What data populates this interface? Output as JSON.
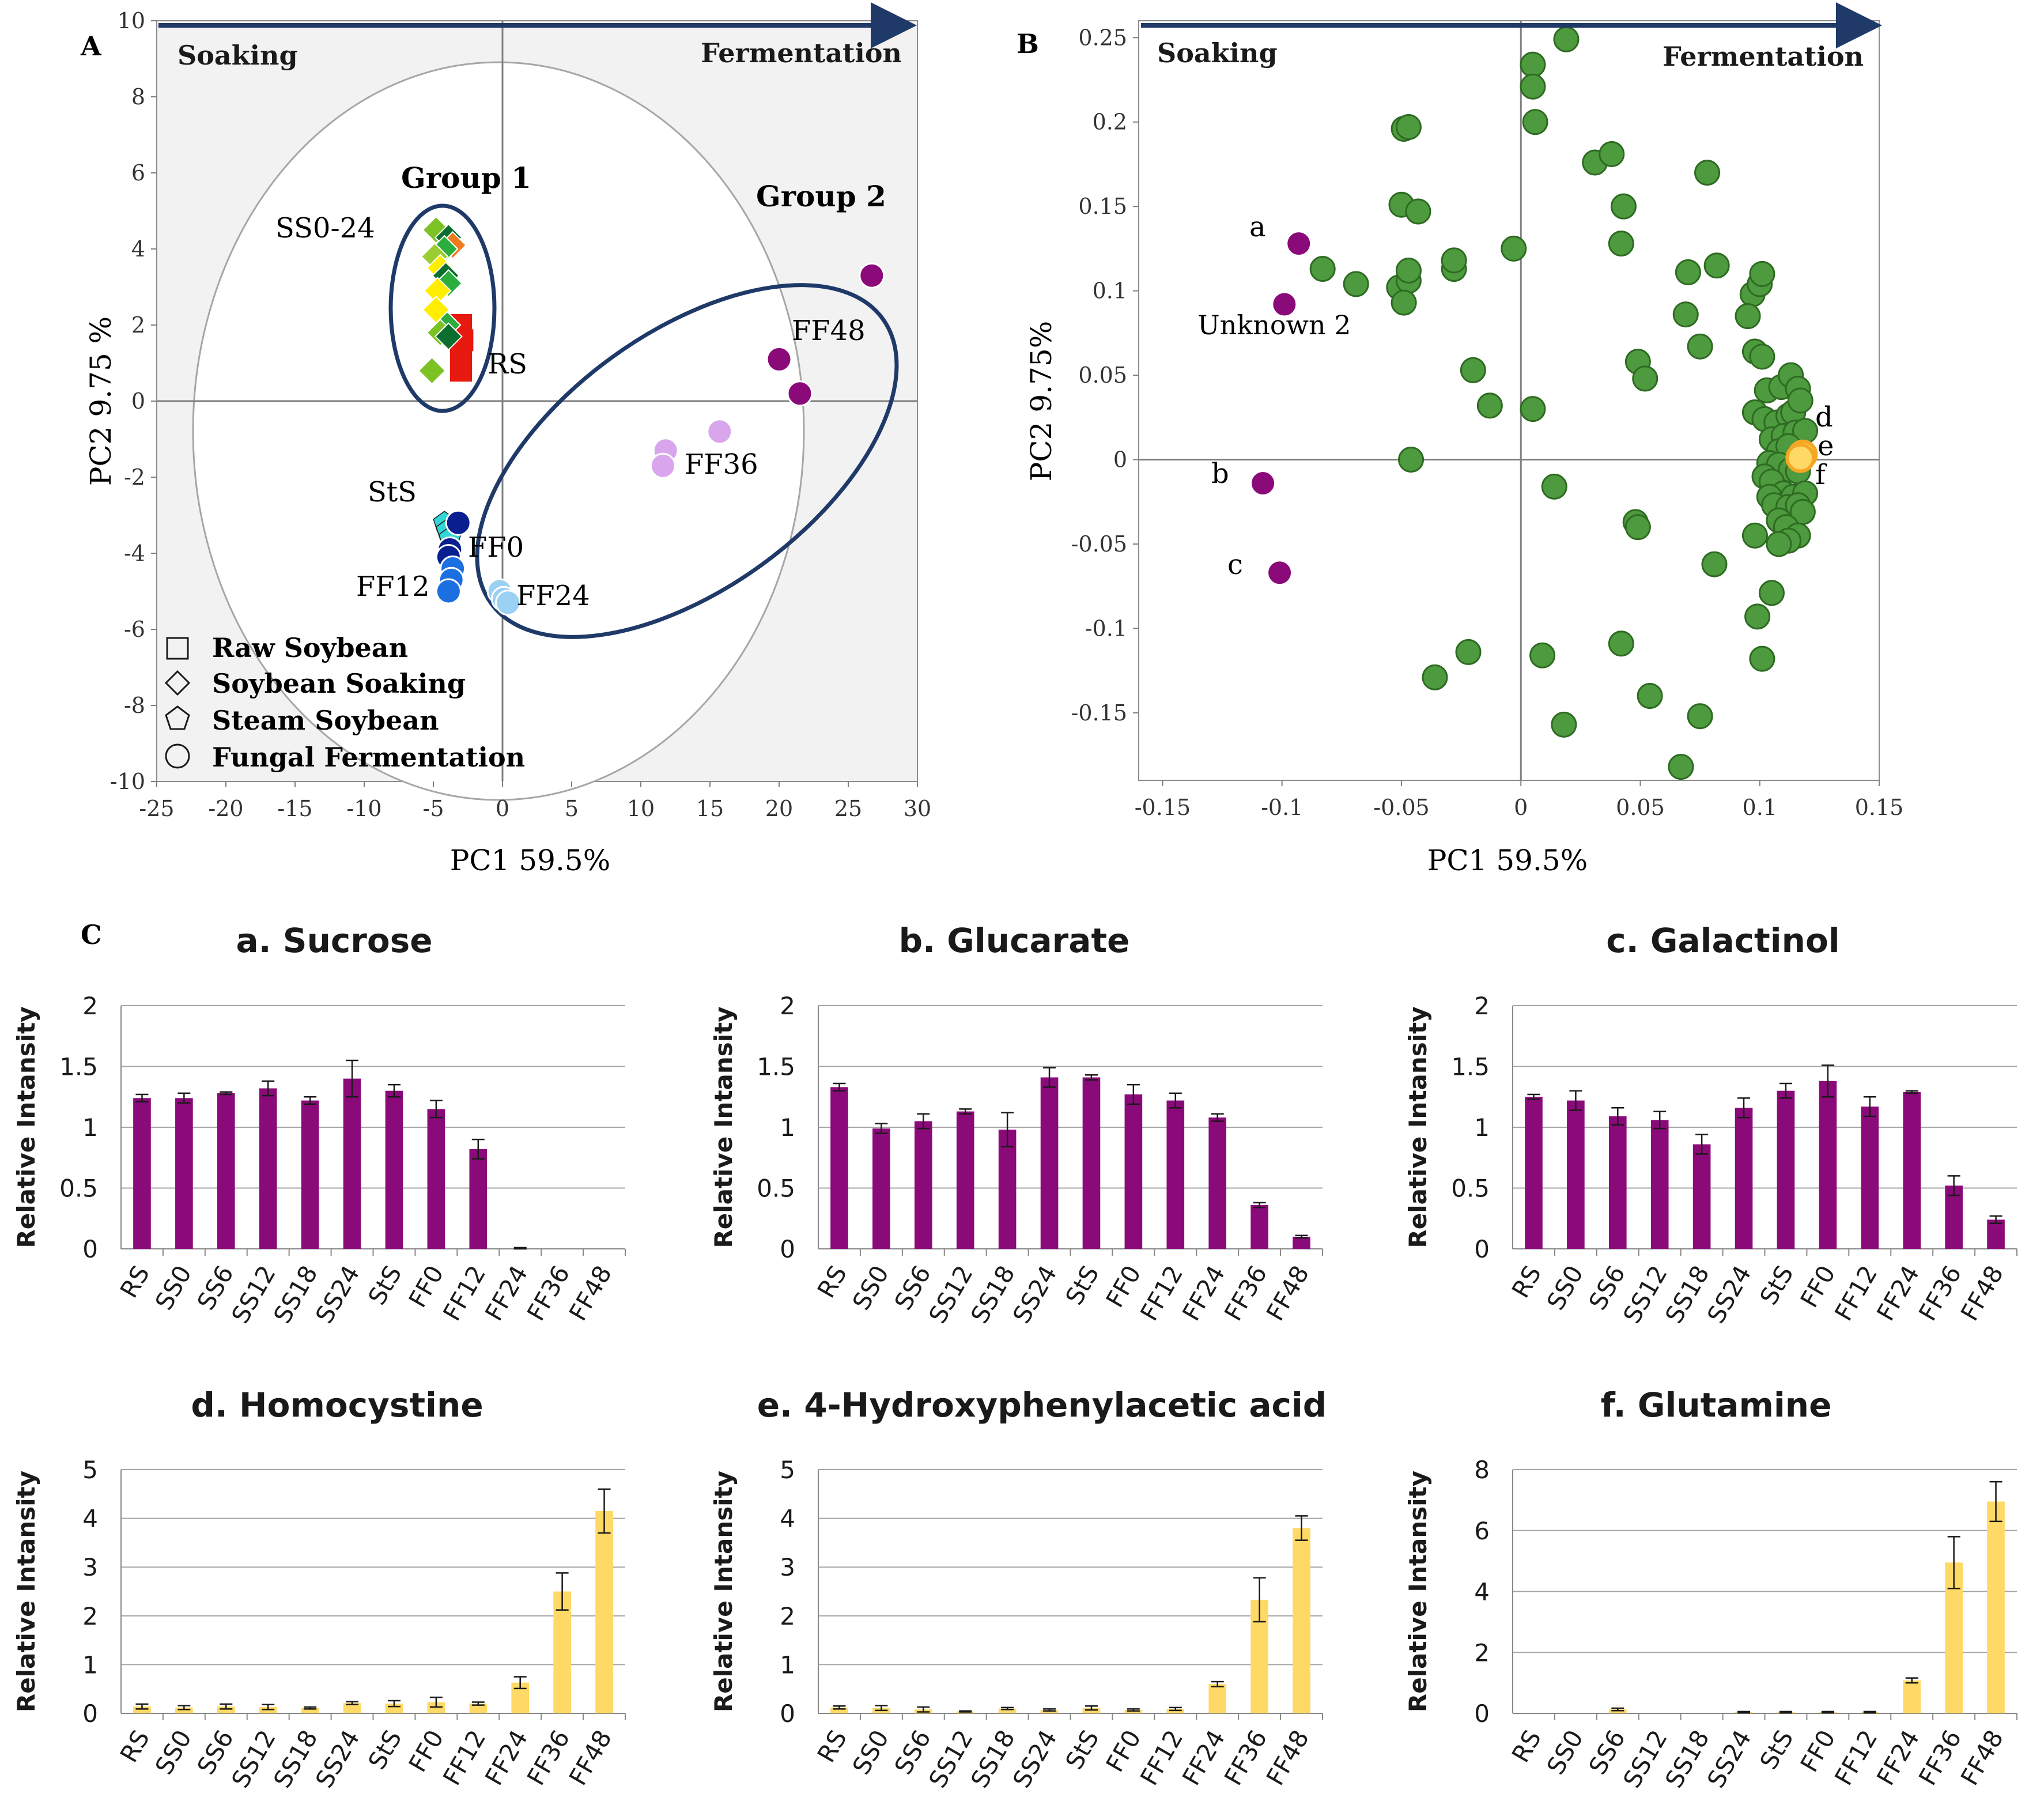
{
  "colors": {
    "purple": "#8B0A7A",
    "yellow": "#FFD966",
    "green": "#4E9A3E",
    "orange": "#F5A623",
    "navy": "#1F3A68",
    "grid": "#A6A6A6",
    "panelBg": "#F2F2F2"
  },
  "chart_data": [
    {
      "id": "A",
      "type": "scatter",
      "panel_label": "A",
      "xlabel": "PC1 59.5%",
      "ylabel": "PC2 9.75 %",
      "xlim": [
        -25,
        30
      ],
      "ylim": [
        -10,
        10
      ],
      "xticks": [
        "-25",
        "-20",
        "-15",
        "-10",
        "-5",
        "0",
        "5",
        "10",
        "15",
        "20",
        "25",
        "30"
      ],
      "yticks": [
        "-10",
        "-8",
        "-6",
        "-4",
        "-2",
        "0",
        "2",
        "4",
        "6",
        "8",
        "10"
      ],
      "arrow_left": "Soaking",
      "arrow_right": "Fermentation",
      "group_labels": [
        "Group 1",
        "Group 2"
      ],
      "annotations": [
        "SS0-24",
        "RS",
        "StS",
        "FF0",
        "FF12",
        "FF24",
        "FF36",
        "FF48"
      ],
      "legend": [
        "Raw Soybean",
        "Soybean Soaking",
        "Steam Soybean",
        "Fungal Fermentation"
      ],
      "series": [
        {
          "name": "RS",
          "marker": "square",
          "color": "#E8190E",
          "points": [
            [
              -3,
              2
            ],
            [
              -2.9,
              1.6
            ],
            [
              -3,
              1.2
            ],
            [
              -3,
              0.8
            ]
          ]
        },
        {
          "name": "SS",
          "marker": "diamond",
          "points": [
            [
              -4.8,
              4.5,
              "#7CC225"
            ],
            [
              -3.9,
              4.3,
              "#0B6E2E"
            ],
            [
              -3.6,
              4.1,
              "#F07A1E"
            ],
            [
              -4.2,
              4.0,
              "#2BAE3E"
            ],
            [
              -4.9,
              3.8,
              "#9ACD32"
            ],
            [
              -4.5,
              3.5,
              "#FFEE00"
            ],
            [
              -4.1,
              3.3,
              "#0B6E2E"
            ],
            [
              -3.9,
              3.1,
              "#2BAE3E"
            ],
            [
              -4.7,
              2.9,
              "#FFEE00"
            ],
            [
              -4.8,
              2.4,
              "#FFEE00"
            ],
            [
              -4.0,
              2.0,
              "#2BAE3E"
            ],
            [
              -4.5,
              1.8,
              "#7CC225"
            ],
            [
              -3.9,
              1.7,
              "#0B6E2E"
            ],
            [
              -5.1,
              0.8,
              "#7CC225"
            ]
          ]
        },
        {
          "name": "StS",
          "marker": "pentagon",
          "color": "#33D6D6",
          "points": [
            [
              -4.2,
              -3.2
            ],
            [
              -4.0,
              -3.4
            ],
            [
              -3.8,
              -3.6
            ]
          ]
        },
        {
          "name": "FF0",
          "marker": "circle",
          "color": "#0A1F8F",
          "points": [
            [
              -3.2,
              -3.2
            ],
            [
              -3.8,
              -3.9
            ],
            [
              -3.9,
              -4.1
            ]
          ]
        },
        {
          "name": "FF12",
          "marker": "circle",
          "color": "#1C6FE0",
          "points": [
            [
              -3.6,
              -4.4
            ],
            [
              -3.7,
              -4.7
            ],
            [
              -3.9,
              -5.0
            ]
          ]
        },
        {
          "name": "FF24",
          "marker": "circle",
          "color": "#9BD1F2",
          "points": [
            [
              -0.2,
              -5.0
            ],
            [
              0.1,
              -5.2
            ],
            [
              0.4,
              -5.3
            ]
          ]
        },
        {
          "name": "FF36",
          "marker": "circle",
          "color": "#D9A6EE",
          "points": [
            [
              11.8,
              -1.3
            ],
            [
              11.6,
              -1.7
            ],
            [
              15.7,
              -0.8
            ]
          ]
        },
        {
          "name": "FF48",
          "marker": "circle",
          "color": "#8B0A7A",
          "points": [
            [
              20.0,
              1.1
            ],
            [
              21.5,
              0.2
            ],
            [
              26.7,
              3.3
            ]
          ]
        }
      ]
    },
    {
      "id": "B",
      "type": "scatter",
      "panel_label": "B",
      "xlabel": "PC1 59.5%",
      "ylabel": "PC2 9.75%",
      "xlim": [
        -0.16,
        0.15
      ],
      "ylim": [
        -0.19,
        0.26
      ],
      "xticks": [
        -0.15,
        -0.1,
        -0.05,
        0,
        0.05,
        0.1,
        0.15
      ],
      "xtick_labels": [
        "-0.15",
        "-0.1",
        "-0.05",
        "0",
        "0.05",
        "0.1",
        "0.15"
      ],
      "yticks": [
        -0.15,
        -0.1,
        -0.05,
        0,
        0.05,
        0.1,
        0.15,
        0.2,
        0.25
      ],
      "ytick_labels": [
        "-0.15",
        "-0.1",
        "-0.05",
        "0",
        "0.05",
        "0.1",
        "0.15",
        "0.2",
        "0.25"
      ],
      "arrow_left": "Soaking",
      "arrow_right": "Fermentation",
      "point_labels": [
        "a",
        "b",
        "c",
        "d",
        "e",
        "f",
        "Unknown 2"
      ],
      "highlighted_low": [
        [
          -0.093,
          0.128
        ],
        [
          -0.099,
          0.092
        ],
        [
          -0.108,
          -0.014
        ],
        [
          -0.101,
          -0.067
        ]
      ],
      "highlighted_high": [
        [
          0.118,
          0.003
        ],
        [
          0.117,
          0.001
        ]
      ],
      "points": [
        [
          0.005,
          0.234
        ],
        [
          0.005,
          0.221
        ],
        [
          0.006,
          0.2
        ],
        [
          0.019,
          0.249
        ],
        [
          -0.049,
          0.196
        ],
        [
          -0.047,
          0.197
        ],
        [
          -0.05,
          0.151
        ],
        [
          -0.043,
          0.147
        ],
        [
          0.031,
          0.176
        ],
        [
          0.038,
          0.181
        ],
        [
          0.078,
          0.17
        ],
        [
          0.043,
          0.15
        ],
        [
          0.042,
          0.128
        ],
        [
          -0.083,
          0.113
        ],
        [
          -0.069,
          0.104
        ],
        [
          -0.051,
          0.102
        ],
        [
          -0.047,
          0.106
        ],
        [
          -0.047,
          0.112
        ],
        [
          -0.049,
          0.093
        ],
        [
          -0.028,
          0.113
        ],
        [
          -0.028,
          0.118
        ],
        [
          -0.003,
          0.125
        ],
        [
          0.07,
          0.111
        ],
        [
          0.082,
          0.115
        ],
        [
          0.097,
          0.098
        ],
        [
          0.1,
          0.104
        ],
        [
          0.101,
          0.11
        ],
        [
          0.069,
          0.086
        ],
        [
          0.095,
          0.085
        ],
        [
          0.075,
          0.067
        ],
        [
          0.049,
          0.058
        ],
        [
          0.052,
          0.048
        ],
        [
          -0.02,
          0.053
        ],
        [
          -0.013,
          0.032
        ],
        [
          0.005,
          0.03
        ],
        [
          -0.046,
          0
        ],
        [
          0.014,
          -0.016
        ],
        [
          0.098,
          0.064
        ],
        [
          0.101,
          0.061
        ],
        [
          0.103,
          0.041
        ],
        [
          0.109,
          0.043
        ],
        [
          0.113,
          0.05
        ],
        [
          0.116,
          0.042
        ],
        [
          0.098,
          0.028
        ],
        [
          0.102,
          0.024
        ],
        [
          0.107,
          0.022
        ],
        [
          0.112,
          0.026
        ],
        [
          0.114,
          0.028
        ],
        [
          0.117,
          0.035
        ],
        [
          0.105,
          0.012
        ],
        [
          0.11,
          0.014
        ],
        [
          0.115,
          0.016
        ],
        [
          0.119,
          0.017
        ],
        [
          0.108,
          0.005
        ],
        [
          0.112,
          0.008
        ],
        [
          0.104,
          -0.002
        ],
        [
          0.108,
          -0.003
        ],
        [
          0.113,
          -0.006
        ],
        [
          0.116,
          -0.007
        ],
        [
          0.102,
          -0.01
        ],
        [
          0.105,
          -0.013
        ],
        [
          0.11,
          -0.02
        ],
        [
          0.114,
          -0.022
        ],
        [
          0.119,
          -0.02
        ],
        [
          0.104,
          -0.022
        ],
        [
          0.106,
          -0.027
        ],
        [
          0.112,
          -0.028
        ],
        [
          0.116,
          -0.027
        ],
        [
          0.118,
          -0.031
        ],
        [
          0.108,
          -0.036
        ],
        [
          0.111,
          -0.04
        ],
        [
          0.116,
          -0.045
        ],
        [
          0.112,
          -0.048
        ],
        [
          0.098,
          -0.045
        ],
        [
          0.108,
          -0.05
        ],
        [
          0.048,
          -0.037
        ],
        [
          0.049,
          -0.04
        ],
        [
          0.081,
          -0.062
        ],
        [
          0.105,
          -0.079
        ],
        [
          0.099,
          -0.093
        ],
        [
          0.101,
          -0.118
        ],
        [
          0.042,
          -0.109
        ],
        [
          0.009,
          -0.116
        ],
        [
          -0.022,
          -0.114
        ],
        [
          -0.036,
          -0.129
        ],
        [
          0.054,
          -0.14
        ],
        [
          0.075,
          -0.152
        ],
        [
          0.018,
          -0.157
        ],
        [
          0.067,
          -0.182
        ]
      ]
    },
    {
      "id": "a",
      "type": "bar",
      "title": "a. Sucrose",
      "ylabel": "Relative Intansity",
      "categories": [
        "RS",
        "SS0",
        "SS6",
        "SS12",
        "SS18",
        "SS24",
        "StS",
        "FF0",
        "FF12",
        "FF24",
        "FF36",
        "FF48"
      ],
      "values": [
        1.24,
        1.24,
        1.28,
        1.32,
        1.22,
        1.4,
        1.3,
        1.15,
        0.82,
        0.0,
        0.0,
        0.0
      ],
      "errors": [
        0.03,
        0.04,
        0.01,
        0.06,
        0.03,
        0.15,
        0.05,
        0.07,
        0.08,
        0.01,
        0,
        0
      ],
      "ylim": [
        0,
        2
      ],
      "yticks": [
        0,
        0.5,
        1,
        1.5,
        2
      ],
      "ytick_labels": [
        "0",
        "0.5",
        "1",
        "1.5",
        "2"
      ],
      "color": "#8B0A7A"
    },
    {
      "id": "b",
      "type": "bar",
      "title": "b. Glucarate",
      "ylabel": "Relative Intansity",
      "categories": [
        "RS",
        "SS0",
        "SS6",
        "SS12",
        "SS18",
        "SS24",
        "StS",
        "FF0",
        "FF12",
        "FF24",
        "FF36",
        "FF48"
      ],
      "values": [
        1.33,
        0.99,
        1.05,
        1.13,
        0.98,
        1.41,
        1.41,
        1.27,
        1.22,
        1.08,
        0.36,
        0.1
      ],
      "errors": [
        0.03,
        0.04,
        0.06,
        0.02,
        0.14,
        0.08,
        0.02,
        0.08,
        0.06,
        0.03,
        0.02,
        0.01
      ],
      "ylim": [
        0,
        2
      ],
      "yticks": [
        0,
        0.5,
        1,
        1.5,
        2
      ],
      "ytick_labels": [
        "0",
        "0.5",
        "1",
        "1.5",
        "2"
      ],
      "color": "#8B0A7A"
    },
    {
      "id": "c",
      "type": "bar",
      "title": "c. Galactinol",
      "ylabel": "Relative Intansity",
      "categories": [
        "RS",
        "SS0",
        "SS6",
        "SS12",
        "SS18",
        "SS24",
        "StS",
        "FF0",
        "FF12",
        "FF24",
        "FF36",
        "FF48"
      ],
      "values": [
        1.25,
        1.22,
        1.09,
        1.06,
        0.86,
        1.16,
        1.3,
        1.38,
        1.17,
        1.29,
        0.52,
        0.24
      ],
      "errors": [
        0.02,
        0.08,
        0.07,
        0.07,
        0.08,
        0.08,
        0.06,
        0.13,
        0.08,
        0.01,
        0.08,
        0.03
      ],
      "ylim": [
        0,
        2
      ],
      "yticks": [
        0,
        0.5,
        1,
        1.5,
        2
      ],
      "ytick_labels": [
        "0",
        "0.5",
        "1",
        "1.5",
        "2"
      ],
      "color": "#8B0A7A"
    },
    {
      "id": "d",
      "type": "bar",
      "title": "d. Homocystine",
      "ylabel": "Relative Intansity",
      "categories": [
        "RS",
        "SS0",
        "SS6",
        "SS12",
        "SS18",
        "SS24",
        "StS",
        "FF0",
        "FF12",
        "FF24",
        "FF36",
        "FF48"
      ],
      "values": [
        0.14,
        0.12,
        0.14,
        0.13,
        0.11,
        0.21,
        0.2,
        0.23,
        0.2,
        0.63,
        2.5,
        4.15
      ],
      "errors": [
        0.05,
        0.04,
        0.05,
        0.05,
        0.02,
        0.03,
        0.06,
        0.1,
        0.03,
        0.12,
        0.38,
        0.45
      ],
      "ylim": [
        0,
        5
      ],
      "yticks": [
        0,
        1,
        2,
        3,
        4,
        5
      ],
      "ytick_labels": [
        "0",
        "1",
        "2",
        "3",
        "4",
        "5"
      ],
      "color": "#FFD966"
    },
    {
      "id": "e",
      "type": "bar",
      "title": "e. 4-Hydroxyphenylacetic acid",
      "ylabel": "Relative Intansity",
      "categories": [
        "RS",
        "SS0",
        "SS6",
        "SS12",
        "SS18",
        "SS24",
        "StS",
        "FF0",
        "FF12",
        "FF24",
        "FF36",
        "FF48"
      ],
      "values": [
        0.12,
        0.11,
        0.08,
        0.04,
        0.1,
        0.07,
        0.11,
        0.07,
        0.09,
        0.6,
        2.33,
        3.8
      ],
      "errors": [
        0.03,
        0.05,
        0.05,
        0.01,
        0.02,
        0.02,
        0.04,
        0.02,
        0.03,
        0.05,
        0.45,
        0.25
      ],
      "ylim": [
        0,
        5
      ],
      "yticks": [
        0,
        1,
        2,
        3,
        4,
        5
      ],
      "ytick_labels": [
        "0",
        "1",
        "2",
        "3",
        "4",
        "5"
      ],
      "color": "#FFD966"
    },
    {
      "id": "f",
      "type": "bar",
      "title": "f. Glutamine",
      "ylabel": "Relative Intansity",
      "categories": [
        "RS",
        "SS0",
        "SS6",
        "SS12",
        "SS18",
        "SS24",
        "StS",
        "FF0",
        "FF12",
        "FF24",
        "FF36",
        "FF48"
      ],
      "values": [
        0,
        0,
        0.13,
        0,
        0,
        0.04,
        0.04,
        0.04,
        0.04,
        1.08,
        4.95,
        6.95
      ],
      "errors": [
        0,
        0,
        0.04,
        0,
        0,
        0.02,
        0.02,
        0.02,
        0.02,
        0.08,
        0.85,
        0.65
      ],
      "ylim": [
        0,
        8
      ],
      "yticks": [
        0,
        2,
        4,
        6,
        8
      ],
      "ytick_labels": [
        "0",
        "2",
        "4",
        "6",
        "8"
      ],
      "color": "#FFD966"
    }
  ],
  "panel_c_label": "C"
}
